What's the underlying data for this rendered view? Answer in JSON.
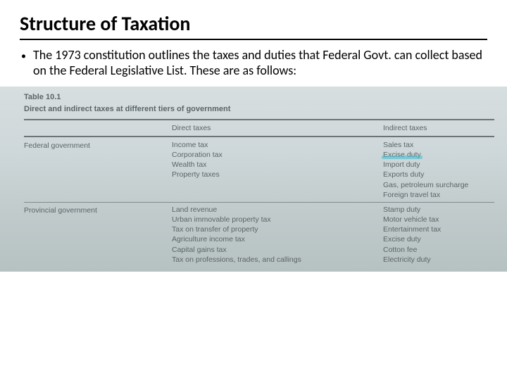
{
  "title": "Structure of Taxation",
  "bullet": "The 1973 constitution outlines the taxes and duties that Federal Govt. can collect based on the Federal Legislative List. These are as follows:",
  "table": {
    "label": "Table 10.1",
    "caption": "Direct and indirect taxes at different tiers of government",
    "head_direct": "Direct taxes",
    "head_indirect": "Indirect taxes",
    "rows": [
      {
        "label": "Federal government",
        "direct": [
          "Income tax",
          "Corporation tax",
          "Wealth tax",
          "Property taxes"
        ],
        "indirect": [
          "Sales tax",
          "Excise duty",
          "Import duty",
          "Exports duty",
          "Gas, petroleum surcharge",
          "Foreign travel tax"
        ],
        "highlight_indirect_index": 1
      },
      {
        "label": "Provincial government",
        "direct": [
          "Land revenue",
          "Urban immovable property tax",
          "Tax on transfer of property",
          "Agriculture income tax",
          "Capital gains tax",
          "Tax on professions, trades, and callings"
        ],
        "indirect": [
          "Stamp duty",
          "Motor vehicle tax",
          "Entertainment tax",
          "Excise duty",
          "Cotton fee",
          "Electricity duty"
        ]
      }
    ]
  },
  "colors": {
    "rule": "#6b7577",
    "scan_text": "#5b6466",
    "highlight": "rgba(60,190,210,0.55)"
  }
}
